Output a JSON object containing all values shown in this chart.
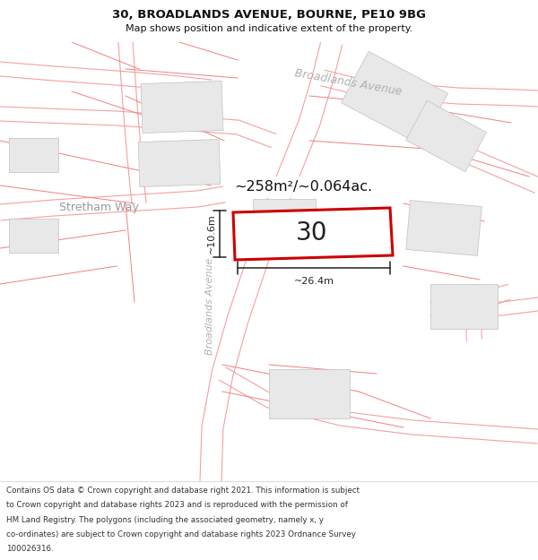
{
  "title_line1": "30, BROADLANDS AVENUE, BOURNE, PE10 9BG",
  "title_line2": "Map shows position and indicative extent of the property.",
  "area_text": "~258m²/~0.064ac.",
  "plot_number": "30",
  "dim_height": "~10.6m",
  "dim_width": "~26.4m",
  "road_label_top": "Broadlands Avenue",
  "road_label_vert": "Broadlands Avenue",
  "street_label": "Stretham Way",
  "footer_lines": [
    "Contains OS data © Crown copyright and database right 2021. This information is subject",
    "to Crown copyright and database rights 2023 and is reproduced with the permission of",
    "HM Land Registry. The polygons (including the associated geometry, namely x, y",
    "co-ordinates) are subject to Crown copyright and database rights 2023 Ordnance Survey",
    "100026316."
  ],
  "map_bg": "#ffffff",
  "plot_border": "#cc0000",
  "building_fill": "#e8e8e8",
  "building_edge": "#c0c0c0",
  "road_line_color": "#f4a0a0",
  "plot_line_color": "#f08080",
  "dim_line_color": "#222222",
  "road_label_color": "#b0b0b0",
  "street_label_color": "#999999",
  "text_color": "#222222"
}
